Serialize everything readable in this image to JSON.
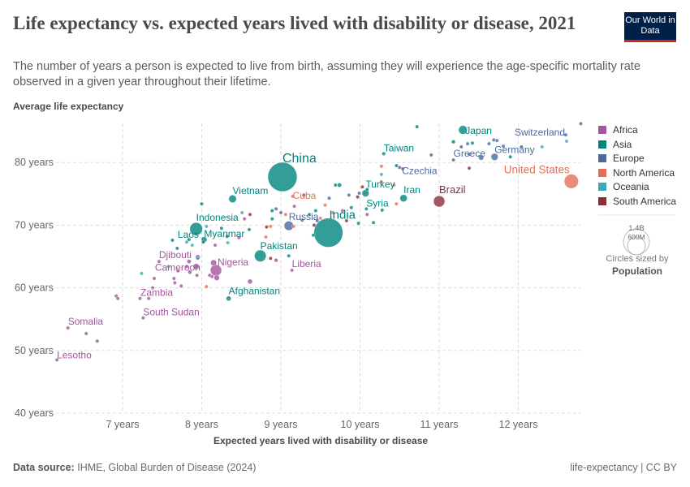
{
  "header": {
    "title": "Life expectancy vs. expected years lived with disability or disease, 2021",
    "subtitle": "The number of years a person is expected to live from birth, assuming they will experience the age-specific mortality rate observed in a given year throughout their lifetime.",
    "logo": "Our World in Data"
  },
  "footer": {
    "source_label": "Data source:",
    "source": "IHME, Global Burden of Disease (2024)",
    "right": "life-expectancy | CC BY"
  },
  "legend": {
    "regions": [
      "Africa",
      "Asia",
      "Europe",
      "North America",
      "Oceania",
      "South America"
    ],
    "size_big": "1.4B",
    "size_small": "600M",
    "size_note": "Circles sized by",
    "size_var": "Population"
  },
  "chart_data": {
    "type": "scatter",
    "title": "Life expectancy vs. expected years lived with disability or disease, 2021",
    "xlabel": "Expected years lived with disability or disease",
    "ylabel": "Average life expectancy",
    "xlim": [
      6.16,
      12.8
    ],
    "ylim": [
      40,
      86
    ],
    "xticks": [
      7,
      8,
      9,
      10,
      11,
      12
    ],
    "xtick_labels": [
      "7 years",
      "8 years",
      "9 years",
      "10 years",
      "11 years",
      "12 years"
    ],
    "yticks": [
      40,
      50,
      60,
      70,
      80
    ],
    "ytick_labels": [
      "40 years",
      "50 years",
      "60 years",
      "70 years",
      "80 years"
    ],
    "grid": true,
    "legend_position": "right",
    "colors": {
      "Africa": "#a2559c",
      "Asia": "#00847e",
      "Europe": "#4c6a9c",
      "North America": "#e56e5a",
      "Oceania": "#38aaba",
      "South America": "#883039"
    },
    "size_unit": "population (millions)",
    "labeled_points": [
      {
        "label": "China",
        "region": "Asia",
        "x": 9.02,
        "y": 77.7,
        "pop": 1425
      },
      {
        "label": "India",
        "region": "Asia",
        "x": 9.6,
        "y": 68.8,
        "pop": 1408
      },
      {
        "label": "Vietnam",
        "region": "Asia",
        "x": 8.39,
        "y": 74.2,
        "pop": 98
      },
      {
        "label": "Indonesia",
        "region": "Asia",
        "x": 7.93,
        "y": 69.4,
        "pop": 274
      },
      {
        "label": "Laos",
        "region": "Asia",
        "x": 7.84,
        "y": 67.7,
        "pop": 7.4
      },
      {
        "label": "Myanmar",
        "region": "Asia",
        "x": 8.03,
        "y": 67.7,
        "pop": 54
      },
      {
        "label": "Pakistan",
        "region": "Asia",
        "x": 8.74,
        "y": 65.1,
        "pop": 231
      },
      {
        "label": "Nigeria",
        "region": "Africa",
        "x": 8.18,
        "y": 62.8,
        "pop": 213
      },
      {
        "label": "Djibouti",
        "region": "Africa",
        "x": 7.46,
        "y": 64.2,
        "pop": 1.1
      },
      {
        "label": "Cameroon",
        "region": "Africa",
        "x": 7.85,
        "y": 62.5,
        "pop": 27
      },
      {
        "label": "Zambia",
        "region": "Africa",
        "x": 7.38,
        "y": 60.0,
        "pop": 19
      },
      {
        "label": "South Sudan",
        "region": "Africa",
        "x": 7.26,
        "y": 55.2,
        "pop": 11
      },
      {
        "label": "Somalia",
        "region": "Africa",
        "x": 6.31,
        "y": 53.6,
        "pop": 17
      },
      {
        "label": "Lesotho",
        "region": "Africa",
        "x": 6.17,
        "y": 48.5,
        "pop": 2.3
      },
      {
        "label": "Afghanistan",
        "region": "Asia",
        "x": 8.34,
        "y": 58.3,
        "pop": 40
      },
      {
        "label": "Liberia",
        "region": "Africa",
        "x": 9.14,
        "y": 62.8,
        "pop": 5
      },
      {
        "label": "Russia",
        "region": "Europe",
        "x": 9.1,
        "y": 69.9,
        "pop": 145
      },
      {
        "label": "Cuba",
        "region": "North America",
        "x": 9.15,
        "y": 74.6,
        "pop": 11
      },
      {
        "label": "Turkey",
        "region": "Asia",
        "x": 10.07,
        "y": 75.1,
        "pop": 85
      },
      {
        "label": "Iran",
        "region": "Asia",
        "x": 10.55,
        "y": 74.3,
        "pop": 88
      },
      {
        "label": "Syria",
        "region": "Asia",
        "x": 10.08,
        "y": 72.6,
        "pop": 21
      },
      {
        "label": "Taiwan",
        "region": "Asia",
        "x": 10.3,
        "y": 81.4,
        "pop": 23
      },
      {
        "label": "Czechia",
        "region": "Europe",
        "x": 10.5,
        "y": 79.2,
        "pop": 10.5
      },
      {
        "label": "Brazil",
        "region": "South America",
        "x": 11.0,
        "y": 73.8,
        "pop": 214
      },
      {
        "label": "Japan",
        "region": "Asia",
        "x": 11.3,
        "y": 85.2,
        "pop": 125
      },
      {
        "label": "Greece",
        "region": "Europe",
        "x": 11.18,
        "y": 80.4,
        "pop": 10.4
      },
      {
        "label": "Germany",
        "region": "Europe",
        "x": 11.7,
        "y": 80.9,
        "pop": 83
      },
      {
        "label": "Switzerland",
        "region": "Europe",
        "x": 12.6,
        "y": 84.4,
        "pop": 8.7
      },
      {
        "label": "United States",
        "region": "North America",
        "x": 12.67,
        "y": 77.0,
        "pop": 337
      }
    ],
    "other_points": [
      [
        "Africa",
        6.92,
        58.7,
        3
      ],
      [
        "Africa",
        6.94,
        58.3,
        3
      ],
      [
        "Africa",
        7.22,
        58.3,
        3
      ],
      [
        "Africa",
        7.33,
        58.3,
        3
      ],
      [
        "Africa",
        6.54,
        52.7,
        3
      ],
      [
        "Africa",
        6.68,
        51.5,
        3
      ],
      [
        "Africa",
        7.4,
        61.5,
        5
      ],
      [
        "Africa",
        7.65,
        61.5,
        4
      ],
      [
        "Africa",
        7.7,
        62.7,
        6
      ],
      [
        "Africa",
        7.81,
        63.4,
        8
      ],
      [
        "Africa",
        7.93,
        63.4,
        60
      ],
      [
        "Africa",
        7.94,
        62,
        20
      ],
      [
        "Africa",
        8.1,
        62,
        5
      ],
      [
        "Africa",
        8.19,
        61.6,
        50
      ],
      [
        "Africa",
        8.17,
        66.8,
        4
      ],
      [
        "Africa",
        8.15,
        64,
        60
      ],
      [
        "Africa",
        8.61,
        61,
        40
      ],
      [
        "Africa",
        8.94,
        64.4,
        25
      ],
      [
        "Africa",
        8.13,
        61.8,
        4
      ],
      [
        "Africa",
        7.74,
        60.3,
        3
      ],
      [
        "Africa",
        7.84,
        64.2,
        30
      ],
      [
        "Africa",
        7.66,
        60.8,
        4
      ],
      [
        "Africa",
        7.95,
        64.9,
        40
      ],
      [
        "Africa",
        10.09,
        71.7,
        8
      ],
      [
        "Africa",
        8.54,
        71,
        3
      ],
      [
        "Africa",
        8.47,
        68,
        5
      ],
      [
        "Africa",
        9.17,
        73,
        3
      ],
      [
        "Africa",
        9.78,
        72.3,
        12
      ],
      [
        "Asia",
        8.0,
        73.4,
        3
      ],
      [
        "Asia",
        7.63,
        67.6,
        3
      ],
      [
        "Asia",
        7.69,
        66.3,
        3
      ],
      [
        "Asia",
        8.02,
        67.3,
        20
      ],
      [
        "Asia",
        8.25,
        69.5,
        3
      ],
      [
        "Asia",
        8.32,
        68.2,
        3
      ],
      [
        "Asia",
        8.6,
        69.3,
        3
      ],
      [
        "Asia",
        8.89,
        72.3,
        10
      ],
      [
        "Asia",
        8.89,
        71,
        3
      ],
      [
        "Asia",
        9.29,
        74.8,
        3
      ],
      [
        "Asia",
        9.36,
        71.7,
        3
      ],
      [
        "Asia",
        9.44,
        72.3,
        3
      ],
      [
        "Asia",
        9.69,
        76.4,
        3
      ],
      [
        "Asia",
        9.74,
        76.4,
        30
      ],
      [
        "Asia",
        9.98,
        70.3,
        5
      ],
      [
        "Asia",
        10.09,
        75.7,
        3
      ],
      [
        "Asia",
        10.17,
        70.4,
        3
      ],
      [
        "Asia",
        10.28,
        72.4,
        3
      ],
      [
        "Asia",
        10.46,
        79.5,
        3
      ],
      [
        "Asia",
        10.72,
        85.7,
        2
      ],
      [
        "Asia",
        11.18,
        83.3,
        25
      ],
      [
        "Asia",
        11.42,
        83.1,
        3
      ],
      [
        "Asia",
        11.9,
        80.9,
        3
      ],
      [
        "Asia",
        9.1,
        65.1,
        3
      ],
      [
        "Asia",
        9.41,
        68.4,
        20
      ],
      [
        "Asia",
        9.89,
        72.8,
        3
      ],
      [
        "Europe",
        8.94,
        72.6,
        3
      ],
      [
        "Europe",
        9.0,
        72,
        3
      ],
      [
        "Europe",
        9.27,
        70.8,
        3
      ],
      [
        "Europe",
        9.46,
        70.7,
        3
      ],
      [
        "Europe",
        9.61,
        74.3,
        3
      ],
      [
        "Europe",
        9.86,
        74.8,
        3
      ],
      [
        "Europe",
        9.99,
        75.1,
        3
      ],
      [
        "Europe",
        10.54,
        79,
        3
      ],
      [
        "Europe",
        10.9,
        81.2,
        3
      ],
      [
        "Europe",
        11.28,
        82.5,
        3
      ],
      [
        "Europe",
        11.36,
        83,
        3
      ],
      [
        "Europe",
        11.63,
        83,
        3
      ],
      [
        "Europe",
        11.73,
        83.5,
        10
      ],
      [
        "Europe",
        11.81,
        82.6,
        3
      ],
      [
        "Europe",
        12.04,
        82.5,
        3
      ],
      [
        "Europe",
        11.38,
        81.3,
        10
      ],
      [
        "Europe",
        12.79,
        86.2,
        2
      ],
      [
        "Europe",
        11.69,
        83.6,
        3
      ],
      [
        "Europe",
        11.53,
        80.8,
        47
      ],
      [
        "North America",
        9.06,
        71.7,
        3
      ],
      [
        "North America",
        8.87,
        69.8,
        3
      ],
      [
        "North America",
        8.81,
        68.1,
        3
      ],
      [
        "North America",
        9.16,
        69.8,
        3
      ],
      [
        "North America",
        9.66,
        72,
        3
      ],
      [
        "North America",
        8.06,
        60.2,
        3
      ],
      [
        "North America",
        10.27,
        79.4,
        2
      ],
      [
        "North America",
        10.27,
        76.9,
        3
      ],
      [
        "North America",
        10.43,
        76.4,
        3
      ],
      [
        "North America",
        10.46,
        73.4,
        3
      ],
      [
        "North America",
        9.5,
        71.1,
        3
      ],
      [
        "North America",
        9.56,
        73.2,
        3
      ],
      [
        "Oceania",
        7.24,
        62.3,
        3
      ],
      [
        "Oceania",
        7.58,
        63.4,
        3
      ],
      [
        "Oceania",
        7.95,
        64.7,
        3
      ],
      [
        "Oceania",
        7.88,
        66.8,
        3
      ],
      [
        "Oceania",
        8.06,
        69.8,
        3
      ],
      [
        "Oceania",
        8.33,
        67.2,
        3
      ],
      [
        "Oceania",
        8.51,
        72,
        3
      ],
      [
        "Oceania",
        10.27,
        78.1,
        3
      ],
      [
        "Oceania",
        12.61,
        83.4,
        5
      ],
      [
        "Oceania",
        12.3,
        82.5,
        3
      ],
      [
        "Oceania",
        7.81,
        67.3,
        3
      ],
      [
        "South America",
        8.61,
        71.7,
        8
      ],
      [
        "South America",
        8.82,
        69.7,
        11
      ],
      [
        "South America",
        8.87,
        64.7,
        3
      ],
      [
        "South America",
        10.03,
        76.1,
        18
      ],
      [
        "South America",
        11.38,
        79.1,
        3
      ],
      [
        "South America",
        9.83,
        70.7,
        3
      ],
      [
        "South America",
        9.97,
        74.5,
        3
      ],
      [
        "South America",
        9.42,
        70,
        3
      ]
    ]
  }
}
